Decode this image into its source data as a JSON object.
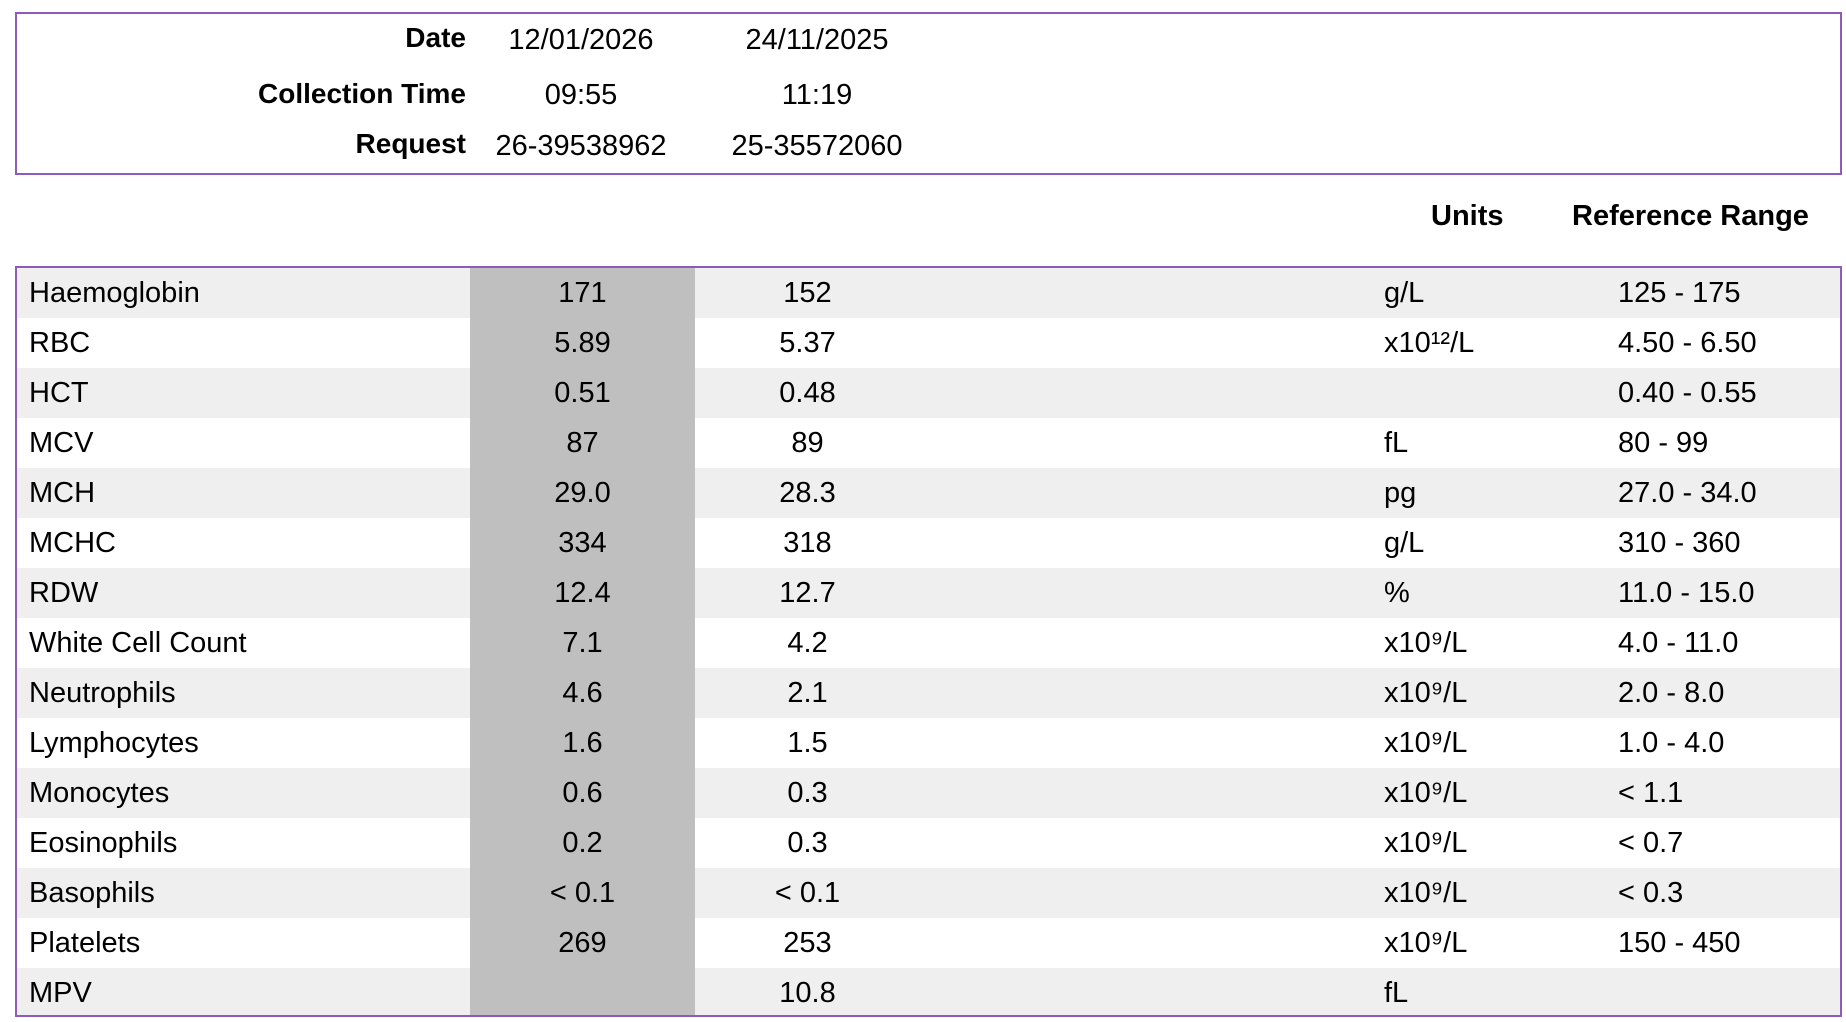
{
  "header": {
    "labels": {
      "date": "Date",
      "collection_time": "Collection Time",
      "request": "Request"
    },
    "columns": [
      {
        "date": "12/01/2026",
        "collection_time": "09:55",
        "request": "26-39538962"
      },
      {
        "date": "24/11/2025",
        "collection_time": "11:19",
        "request": "25-35572060"
      }
    ]
  },
  "table_headers": {
    "units": "Units",
    "reference_range": "Reference Range"
  },
  "rows": [
    {
      "name": "Haemoglobin",
      "current": "171",
      "previous": "152",
      "units": "g/L",
      "range": "125 - 175"
    },
    {
      "name": "RBC",
      "current": "5.89",
      "previous": "5.37",
      "units": "x10¹²/L",
      "range": "4.50 - 6.50"
    },
    {
      "name": "HCT",
      "current": "0.51",
      "previous": "0.48",
      "units": "",
      "range": "0.40 - 0.55"
    },
    {
      "name": "MCV",
      "current": "87",
      "previous": "89",
      "units": "fL",
      "range": "80 - 99"
    },
    {
      "name": "MCH",
      "current": "29.0",
      "previous": "28.3",
      "units": "pg",
      "range": "27.0 - 34.0"
    },
    {
      "name": "MCHC",
      "current": "334",
      "previous": "318",
      "units": "g/L",
      "range": "310 - 360"
    },
    {
      "name": "RDW",
      "current": "12.4",
      "previous": "12.7",
      "units": "%",
      "range": "11.0 - 15.0"
    },
    {
      "name": "White Cell Count",
      "current": "7.1",
      "previous": "4.2",
      "units": "x10⁹/L",
      "range": "4.0 - 11.0"
    },
    {
      "name": "Neutrophils",
      "current": "4.6",
      "previous": "2.1",
      "units": "x10⁹/L",
      "range": "2.0 - 8.0"
    },
    {
      "name": "Lymphocytes",
      "current": "1.6",
      "previous": "1.5",
      "units": "x10⁹/L",
      "range": "1.0 - 4.0"
    },
    {
      "name": "Monocytes",
      "current": "0.6",
      "previous": "0.3",
      "units": "x10⁹/L",
      "range": "< 1.1"
    },
    {
      "name": "Eosinophils",
      "current": "0.2",
      "previous": "0.3",
      "units": "x10⁹/L",
      "range": "< 0.7"
    },
    {
      "name": "Basophils",
      "current": "< 0.1",
      "previous": "< 0.1",
      "units": "x10⁹/L",
      "range": "< 0.3"
    },
    {
      "name": "Platelets",
      "current": "269",
      "previous": "253",
      "units": "x10⁹/L",
      "range": "150 - 450"
    },
    {
      "name": "MPV",
      "current": "",
      "previous": "10.8",
      "units": "fL",
      "range": ""
    }
  ],
  "colors": {
    "border": "#8e5bb8",
    "row_shade": "#efefef",
    "current_column": "#bfbfbf"
  }
}
